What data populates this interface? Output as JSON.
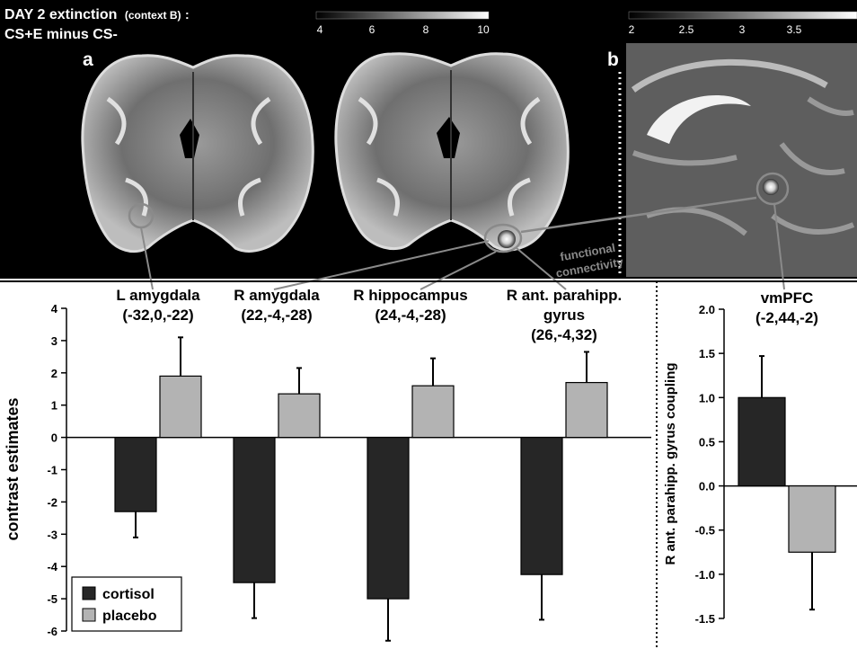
{
  "figure": {
    "title_line1": "DAY 2 extinction",
    "title_context": "(context B)",
    "title_colon": ":",
    "title_line2": "CS+E minus CS-",
    "panel_a": "a",
    "panel_b": "b",
    "connectivity_line1": "functional",
    "connectivity_line2": "connectivity",
    "colorbar_a_ticks": [
      "4",
      "6",
      "8",
      "10"
    ],
    "colorbar_b_ticks": [
      "2",
      "2.5",
      "3",
      "3.5"
    ]
  },
  "chart_data": [
    {
      "type": "bar",
      "ylabel": "contrast estimates",
      "ylim": [
        -6,
        4
      ],
      "yticks": [
        4,
        3,
        2,
        1,
        0,
        -1,
        -2,
        -3,
        -4,
        -5,
        -6
      ],
      "categories": [
        {
          "name": "L amygdala",
          "coords": "(-32,0,-22)"
        },
        {
          "name": "R amygdala",
          "coords": "(22,-4,-28)"
        },
        {
          "name": "R hippocampus",
          "coords": "(24,-4,-28)"
        },
        {
          "name": "R ant. parahipp.",
          "name2": "gyrus",
          "coords": "(26,-4,32)"
        }
      ],
      "series": [
        {
          "name": "cortisol",
          "color": "#262626",
          "values": [
            -2.3,
            -4.5,
            -5.0,
            -4.25
          ],
          "errors": [
            0.8,
            1.1,
            1.3,
            1.4
          ]
        },
        {
          "name": "placebo",
          "color": "#b3b3b3",
          "values": [
            1.9,
            1.35,
            1.6,
            1.7
          ],
          "errors": [
            1.2,
            0.8,
            0.85,
            0.95
          ]
        }
      ],
      "legend": "bottom-left"
    },
    {
      "type": "bar",
      "ylabel": "R ant. parahipp. gyrus coupling",
      "ylim": [
        -1.5,
        2.0
      ],
      "yticks": [
        "2.0",
        "1.5",
        "1.0",
        "0.5",
        "0.0",
        "-0.5",
        "-1.0",
        "-1.5"
      ],
      "categories": [
        {
          "name": "vmPFC",
          "coords": "(-2,44,-2)"
        }
      ],
      "series": [
        {
          "name": "cortisol",
          "color": "#262626",
          "values": [
            1.0
          ],
          "errors": [
            0.47
          ]
        },
        {
          "name": "placebo",
          "color": "#b3b3b3",
          "values": [
            -0.75
          ],
          "errors": [
            0.65
          ]
        }
      ]
    }
  ]
}
